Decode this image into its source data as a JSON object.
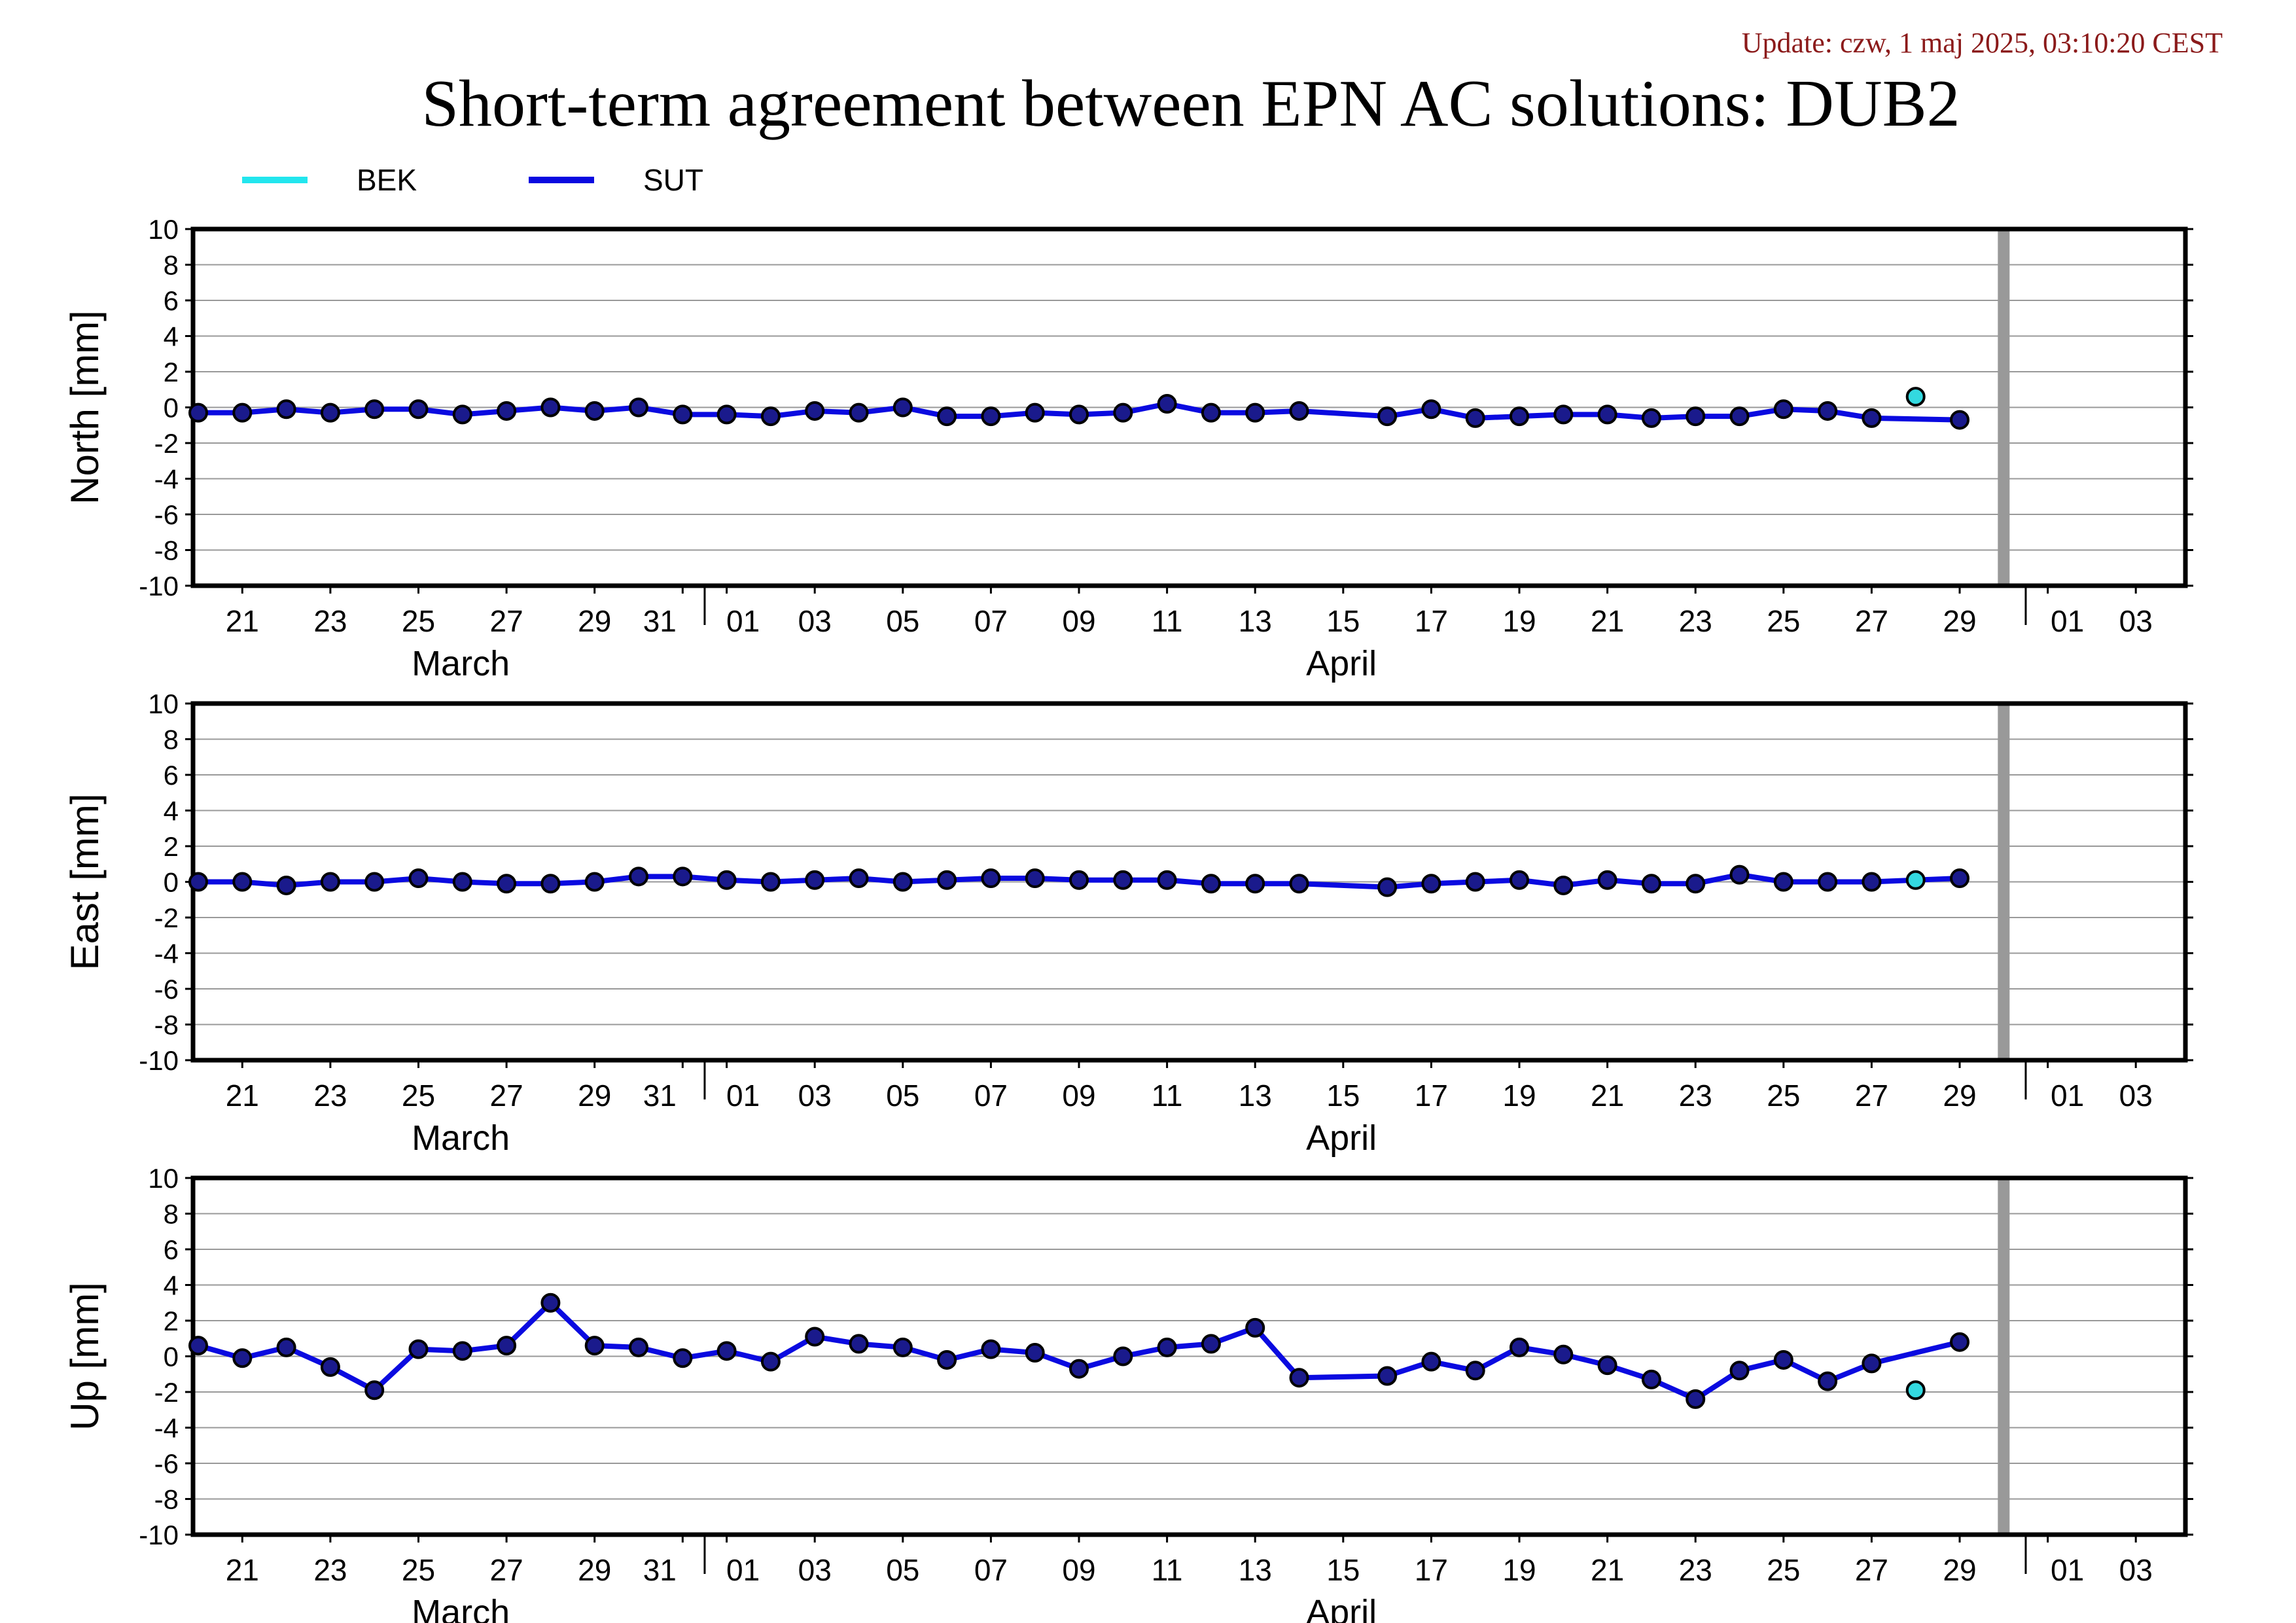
{
  "update": "Update: czw, 1 maj 2025, 03:10:20 CEST",
  "title": "Short-term agreement between EPN AC solutions: DUB2",
  "legend": [
    {
      "name": "BEK",
      "color": "#22e6ee"
    },
    {
      "name": "SUT",
      "color": "#0a0ae0"
    }
  ],
  "colors": {
    "axis": "#000000",
    "grid": "#999999",
    "marker_edge": "#000000",
    "marker_fill": "#1a1a8c",
    "bek_marker": "#33d9e0",
    "vline": "#999999"
  },
  "chart_data": [
    {
      "type": "line",
      "ylabel": "North [mm]",
      "ylim": [
        -10,
        10
      ],
      "yticks": [
        -10,
        -8,
        -6,
        -4,
        -2,
        0,
        2,
        4,
        6,
        8,
        10
      ],
      "x_tick_labels": [
        "21",
        "23",
        "25",
        "27",
        "29",
        "31",
        "01",
        "03",
        "05",
        "07",
        "09",
        "11",
        "13",
        "15",
        "17",
        "19",
        "21",
        "23",
        "25",
        "27",
        "29",
        "01",
        "03"
      ],
      "month_labels": [
        "March",
        "April"
      ],
      "vertical_marker_date": "2025-04-30",
      "grid": true,
      "series": [
        {
          "name": "SUT",
          "x": [
            "03-20",
            "03-21",
            "03-22",
            "03-23",
            "03-24",
            "03-25",
            "03-26",
            "03-27",
            "03-28",
            "03-29",
            "03-30",
            "03-31",
            "04-01",
            "04-02",
            "04-03",
            "04-04",
            "04-05",
            "04-06",
            "04-07",
            "04-08",
            "04-09",
            "04-10",
            "04-11",
            "04-12",
            "04-13",
            "04-14",
            "04-16",
            "04-17",
            "04-18",
            "04-19",
            "04-20",
            "04-21",
            "04-22",
            "04-23",
            "04-24",
            "04-25",
            "04-26",
            "04-27",
            "04-29"
          ],
          "y": [
            -0.3,
            -0.3,
            -0.1,
            -0.3,
            -0.1,
            -0.1,
            -0.4,
            -0.2,
            0.0,
            -0.2,
            0.0,
            -0.4,
            -0.4,
            -0.5,
            -0.2,
            -0.3,
            0.0,
            -0.5,
            -0.5,
            -0.3,
            -0.4,
            -0.3,
            0.2,
            -0.3,
            -0.3,
            -0.2,
            -0.5,
            -0.1,
            -0.6,
            -0.5,
            -0.4,
            -0.4,
            -0.6,
            -0.5,
            -0.5,
            -0.1,
            -0.2,
            -0.6,
            -0.7
          ]
        },
        {
          "name": "BEK",
          "x": [
            "04-28"
          ],
          "y": [
            0.6
          ]
        }
      ]
    },
    {
      "type": "line",
      "ylabel": "East [mm]",
      "ylim": [
        -10,
        10
      ],
      "yticks": [
        -10,
        -8,
        -6,
        -4,
        -2,
        0,
        2,
        4,
        6,
        8,
        10
      ],
      "x_tick_labels": [
        "21",
        "23",
        "25",
        "27",
        "29",
        "31",
        "01",
        "03",
        "05",
        "07",
        "09",
        "11",
        "13",
        "15",
        "17",
        "19",
        "21",
        "23",
        "25",
        "27",
        "29",
        "01",
        "03"
      ],
      "month_labels": [
        "March",
        "April"
      ],
      "vertical_marker_date": "2025-04-30",
      "grid": true,
      "series": [
        {
          "name": "SUT",
          "x": [
            "03-20",
            "03-21",
            "03-22",
            "03-23",
            "03-24",
            "03-25",
            "03-26",
            "03-27",
            "03-28",
            "03-29",
            "03-30",
            "03-31",
            "04-01",
            "04-02",
            "04-03",
            "04-04",
            "04-05",
            "04-06",
            "04-07",
            "04-08",
            "04-09",
            "04-10",
            "04-11",
            "04-12",
            "04-13",
            "04-14",
            "04-16",
            "04-17",
            "04-18",
            "04-19",
            "04-20",
            "04-21",
            "04-22",
            "04-23",
            "04-24",
            "04-25",
            "04-26",
            "04-27",
            "04-29"
          ],
          "y": [
            0.0,
            0.0,
            -0.2,
            0.0,
            0.0,
            0.2,
            0.0,
            -0.1,
            -0.1,
            0.0,
            0.3,
            0.3,
            0.1,
            0.0,
            0.1,
            0.2,
            0.0,
            0.1,
            0.2,
            0.2,
            0.1,
            0.1,
            0.1,
            -0.1,
            -0.1,
            -0.1,
            -0.3,
            -0.1,
            0.0,
            0.1,
            -0.2,
            0.1,
            -0.1,
            -0.1,
            0.4,
            0.0,
            0.0,
            0.0,
            0.2
          ]
        },
        {
          "name": "BEK",
          "x": [
            "04-28"
          ],
          "y": [
            0.1
          ]
        }
      ]
    },
    {
      "type": "line",
      "ylabel": "Up [mm]",
      "ylim": [
        -10,
        10
      ],
      "yticks": [
        -10,
        -8,
        -6,
        -4,
        -2,
        0,
        2,
        4,
        6,
        8,
        10
      ],
      "x_tick_labels": [
        "21",
        "23",
        "25",
        "27",
        "29",
        "31",
        "01",
        "03",
        "05",
        "07",
        "09",
        "11",
        "13",
        "15",
        "17",
        "19",
        "21",
        "23",
        "25",
        "27",
        "29",
        "01",
        "03"
      ],
      "month_labels": [
        "March",
        "April"
      ],
      "vertical_marker_date": "2025-04-30",
      "grid": true,
      "series": [
        {
          "name": "SUT",
          "x": [
            "03-20",
            "03-21",
            "03-22",
            "03-23",
            "03-24",
            "03-25",
            "03-26",
            "03-27",
            "03-28",
            "03-29",
            "03-30",
            "03-31",
            "04-01",
            "04-02",
            "04-03",
            "04-04",
            "04-05",
            "04-06",
            "04-07",
            "04-08",
            "04-09",
            "04-10",
            "04-11",
            "04-12",
            "04-13",
            "04-14",
            "04-16",
            "04-17",
            "04-18",
            "04-19",
            "04-20",
            "04-21",
            "04-22",
            "04-23",
            "04-24",
            "04-25",
            "04-26",
            "04-27",
            "04-29"
          ],
          "y": [
            0.6,
            -0.1,
            0.5,
            -0.6,
            -1.9,
            0.4,
            0.3,
            0.6,
            3.0,
            0.6,
            0.5,
            -0.1,
            0.3,
            -0.3,
            1.1,
            0.7,
            0.5,
            -0.2,
            0.4,
            0.2,
            -0.7,
            0.0,
            0.5,
            0.7,
            1.6,
            -1.2,
            -1.1,
            -0.3,
            -0.8,
            0.5,
            0.1,
            -0.5,
            -1.3,
            -2.4,
            -0.8,
            -0.2,
            -1.4,
            -0.4,
            0.8
          ]
        },
        {
          "name": "BEK",
          "x": [
            "04-28"
          ],
          "y": [
            -1.9
          ]
        }
      ]
    }
  ]
}
